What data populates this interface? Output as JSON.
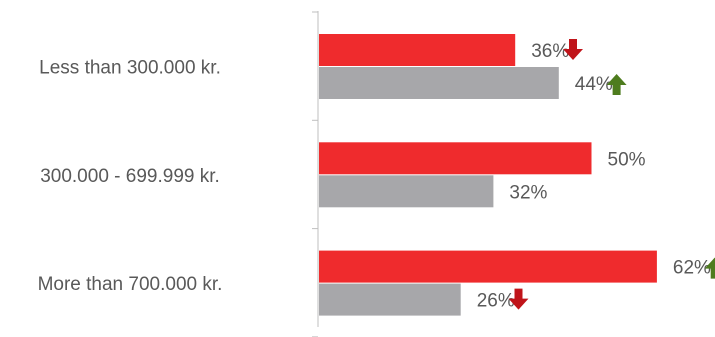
{
  "chart_data": {
    "type": "bar",
    "orientation": "horizontal",
    "categories": [
      "Less than 300.000 kr.",
      "300.000 - 699.999 kr.",
      "More than 700.000 kr."
    ],
    "series": [
      {
        "values": [
          36,
          50,
          62
        ],
        "color": "#ef2b2d"
      },
      {
        "values": [
          44,
          32,
          26
        ],
        "color": "#a7a7aa"
      }
    ],
    "data_labels": [
      [
        "36%",
        "50%",
        "62%"
      ],
      [
        "44%",
        "32%",
        "26%"
      ]
    ],
    "trend_arrows": [
      [
        "down",
        null,
        "up"
      ],
      [
        "up",
        null,
        "down"
      ]
    ],
    "xlim": [
      0,
      70
    ],
    "grid": false,
    "legend": "none",
    "colors": {
      "label_text": "#595959",
      "axis": "#bfbfbf",
      "arrow_up": "#4e7c1e",
      "arrow_down": "#c0141a"
    }
  }
}
